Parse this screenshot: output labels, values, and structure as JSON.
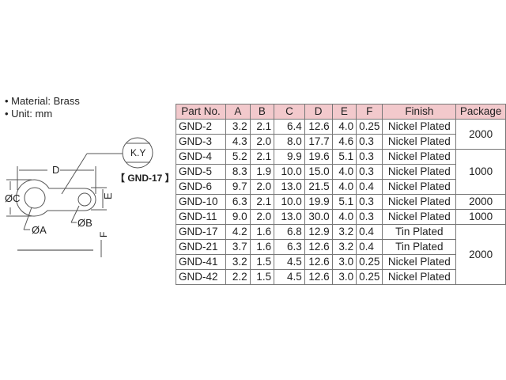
{
  "specs": [
    "• Material: Brass",
    "• Unit: mm"
  ],
  "drawing": {
    "labels": {
      "d": "D",
      "c": "ØC",
      "a": "ØA",
      "b": "ØB",
      "e": "E",
      "f": "F",
      "marking": "K.Y"
    },
    "model": "【 GND-17 】"
  },
  "table": {
    "headers": [
      "Part No.",
      "A",
      "B",
      "C",
      "D",
      "E",
      "F",
      "Finish",
      "Package"
    ],
    "rows": [
      [
        "GND-2",
        "3.2",
        "2.1",
        "6.4",
        "12.6",
        "4.0",
        "0.25",
        "Nickel Plated"
      ],
      [
        "GND-3",
        "4.3",
        "2.0",
        "8.0",
        "17.7",
        "4.6",
        "0.3",
        "Nickel Plated"
      ],
      [
        "GND-4",
        "5.2",
        "2.1",
        "9.9",
        "19.6",
        "5.1",
        "0.3",
        "Nickel Plated"
      ],
      [
        "GND-5",
        "8.3",
        "1.9",
        "10.0",
        "15.0",
        "4.0",
        "0.3",
        "Nickel Plated"
      ],
      [
        "GND-6",
        "9.7",
        "2.0",
        "13.0",
        "21.5",
        "4.0",
        "0.4",
        "Nickel Plated"
      ],
      [
        "GND-10",
        "6.3",
        "2.1",
        "10.0",
        "19.9",
        "5.1",
        "0.3",
        "Nickel Plated"
      ],
      [
        "GND-11",
        "9.0",
        "2.0",
        "13.0",
        "30.0",
        "4.0",
        "0.3",
        "Nickel Plated"
      ],
      [
        "GND-17",
        "4.2",
        "1.6",
        "6.8",
        "12.9",
        "3.2",
        "0.4",
        "Tin Plated"
      ],
      [
        "GND-21",
        "3.7",
        "1.6",
        "6.3",
        "12.6",
        "3.2",
        "0.4",
        "Tin Plated"
      ],
      [
        "GND-41",
        "3.2",
        "1.5",
        "4.5",
        "12.6",
        "3.0",
        "0.25",
        "Nickel Plated"
      ],
      [
        "GND-42",
        "2.2",
        "1.5",
        "4.5",
        "12.6",
        "3.0",
        "0.25",
        "Nickel Plated"
      ]
    ],
    "packages": [
      {
        "value": "2000",
        "span": 2
      },
      {
        "value": "1000",
        "span": 3
      },
      {
        "value": "2000",
        "span": 1
      },
      {
        "value": "1000",
        "span": 1
      },
      {
        "value": "2000",
        "span": 4
      }
    ]
  },
  "colors": {
    "header_bg": "#f2c9cc"
  }
}
